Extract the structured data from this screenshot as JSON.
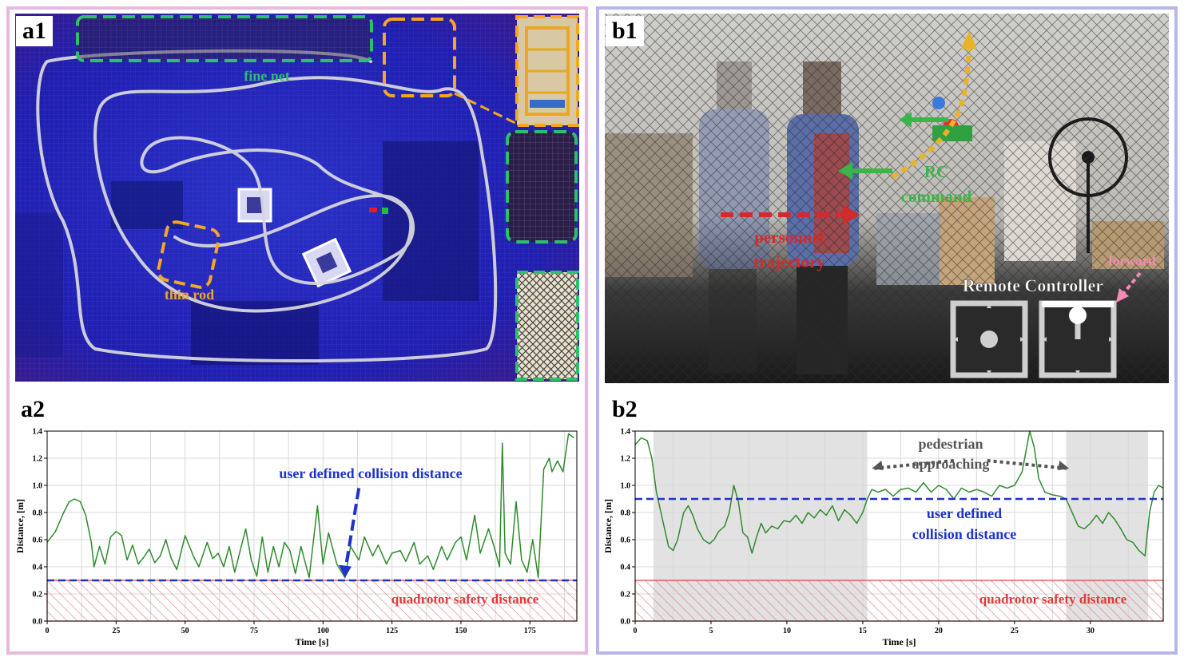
{
  "colors": {
    "frame_a": "#e7b9da",
    "frame_b": "#b6b6ec",
    "series": "#2e8b2e",
    "collision_line": "#1f33c8",
    "safety": "#e03a3a",
    "net_green": "#2fbf6a",
    "rod_orange": "#f5a623",
    "rc_green": "#3ab54a",
    "personnel_red": "#d42a2a",
    "forward_pink": "#f28bb5",
    "shade_gray": "#e2e2e2"
  },
  "panel_a1": {
    "label": "a1",
    "fine_net_label": "fine net",
    "thin_rod_label": "thin rod"
  },
  "panel_b1": {
    "label": "b1",
    "rc_label_line1": "RC",
    "rc_label_line2": "command",
    "personnel_line1": "personnel",
    "personnel_line2": "trajectory",
    "remote_controller_label": "Remote Controller",
    "forward_label": "forward"
  },
  "chart_data": [
    {
      "id": "a2",
      "type": "line",
      "label": "a2",
      "xlabel": "Time [s]",
      "ylabel": "Distance, [m]",
      "xlim": [
        0,
        192
      ],
      "ylim": [
        0,
        1.4
      ],
      "xticks": [
        0,
        25,
        50,
        75,
        100,
        125,
        150,
        175
      ],
      "yticks": [
        0.0,
        0.2,
        0.4,
        0.6,
        0.8,
        1.0,
        1.2,
        1.4
      ],
      "grid": true,
      "collision_distance": 0.3,
      "collision_label": "user defined collision distance",
      "safety_distance": 0.3,
      "safety_label": "quadrotor safety distance",
      "x": [
        0,
        3,
        6,
        8,
        10,
        12,
        14,
        16,
        17,
        19,
        21,
        23,
        25,
        27,
        29,
        31,
        33,
        35,
        37,
        39,
        41,
        43,
        45,
        47,
        50,
        53,
        55,
        58,
        60,
        62,
        64,
        66,
        68,
        70,
        72,
        74,
        76,
        78,
        80,
        82,
        84,
        86,
        88,
        90,
        92,
        95,
        98,
        100,
        102,
        105,
        108,
        110,
        113,
        115,
        118,
        120,
        123,
        125,
        128,
        130,
        133,
        135,
        138,
        140,
        143,
        145,
        148,
        150,
        152,
        155,
        157,
        160,
        162,
        164,
        165,
        166,
        168,
        170,
        172,
        174,
        176,
        178,
        180,
        182,
        183,
        185,
        187,
        189,
        191
      ],
      "y": [
        0.58,
        0.66,
        0.8,
        0.88,
        0.9,
        0.88,
        0.78,
        0.58,
        0.4,
        0.55,
        0.42,
        0.62,
        0.66,
        0.63,
        0.45,
        0.56,
        0.42,
        0.47,
        0.53,
        0.43,
        0.48,
        0.6,
        0.46,
        0.38,
        0.63,
        0.48,
        0.4,
        0.58,
        0.46,
        0.5,
        0.4,
        0.55,
        0.36,
        0.52,
        0.68,
        0.45,
        0.33,
        0.62,
        0.36,
        0.55,
        0.4,
        0.58,
        0.52,
        0.35,
        0.55,
        0.32,
        0.85,
        0.42,
        0.65,
        0.42,
        0.32,
        0.55,
        0.45,
        0.62,
        0.48,
        0.56,
        0.42,
        0.5,
        0.52,
        0.44,
        0.58,
        0.42,
        0.48,
        0.38,
        0.55,
        0.45,
        0.58,
        0.62,
        0.45,
        0.78,
        0.5,
        0.68,
        0.55,
        0.4,
        1.31,
        0.5,
        0.42,
        0.88,
        0.45,
        0.36,
        0.6,
        0.32,
        1.12,
        1.2,
        1.1,
        1.18,
        1.1,
        1.38,
        1.35
      ],
      "annotation_arrow": {
        "x0": 113,
        "y0": 0.98,
        "x1": 108,
        "y1": 0.32
      }
    },
    {
      "id": "b2",
      "type": "line",
      "label": "b2",
      "xlabel": "Time [s]",
      "ylabel": "Distance, [m]",
      "xlim": [
        0,
        34.8
      ],
      "ylim": [
        0,
        1.4
      ],
      "xticks": [
        0,
        5,
        10,
        15,
        20,
        25,
        30
      ],
      "yticks": [
        0.0,
        0.2,
        0.4,
        0.6,
        0.8,
        1.0,
        1.2,
        1.4
      ],
      "grid": true,
      "collision_distance": 0.9,
      "collision_label_line1": "user defined",
      "collision_label_line2": "collision distance",
      "safety_distance": 0.3,
      "safety_label": "quadrotor safety distance",
      "annotation_line1": "pedestrian",
      "annotation_line2": "approaching",
      "shaded_regions": [
        [
          1.2,
          15.3
        ],
        [
          28.4,
          33.8
        ]
      ],
      "x": [
        0,
        0.4,
        0.8,
        1.1,
        1.4,
        1.8,
        2.2,
        2.5,
        2.8,
        3.2,
        3.5,
        3.8,
        4.1,
        4.5,
        4.9,
        5.2,
        5.5,
        5.9,
        6.2,
        6.5,
        6.8,
        7.1,
        7.4,
        7.7,
        8.0,
        8.3,
        8.6,
        9.0,
        9.4,
        9.8,
        10.2,
        10.6,
        11.0,
        11.4,
        11.8,
        12.2,
        12.6,
        13.0,
        13.4,
        13.8,
        14.2,
        14.6,
        15.0,
        15.3,
        15.6,
        16.0,
        16.5,
        17.0,
        17.5,
        18.0,
        18.5,
        19.0,
        19.5,
        20.0,
        20.5,
        21.0,
        21.5,
        22.0,
        22.5,
        23.0,
        23.5,
        24.0,
        24.5,
        25.0,
        25.5,
        26.0,
        26.3,
        26.6,
        27.0,
        27.5,
        28.0,
        28.4,
        28.8,
        29.2,
        29.6,
        30.0,
        30.4,
        30.8,
        31.2,
        31.6,
        32.0,
        32.4,
        32.8,
        33.2,
        33.6,
        33.9,
        34.2,
        34.5,
        34.8
      ],
      "y": [
        1.3,
        1.35,
        1.33,
        1.2,
        0.95,
        0.75,
        0.55,
        0.52,
        0.6,
        0.8,
        0.85,
        0.78,
        0.68,
        0.6,
        0.57,
        0.6,
        0.66,
        0.7,
        0.8,
        1.0,
        0.88,
        0.65,
        0.62,
        0.5,
        0.62,
        0.72,
        0.65,
        0.7,
        0.68,
        0.74,
        0.73,
        0.78,
        0.72,
        0.8,
        0.76,
        0.82,
        0.78,
        0.85,
        0.74,
        0.82,
        0.78,
        0.72,
        0.8,
        0.9,
        0.97,
        0.95,
        0.97,
        0.92,
        0.97,
        0.98,
        0.95,
        1.02,
        0.95,
        1.0,
        0.97,
        0.9,
        0.98,
        0.95,
        0.97,
        0.95,
        0.92,
        1.0,
        0.98,
        1.0,
        1.1,
        1.4,
        1.28,
        1.05,
        0.95,
        0.93,
        0.92,
        0.9,
        0.8,
        0.7,
        0.68,
        0.72,
        0.78,
        0.72,
        0.8,
        0.75,
        0.68,
        0.6,
        0.58,
        0.52,
        0.48,
        0.8,
        0.95,
        1.0,
        0.98
      ],
      "arrow_left": {
        "x0": 21.0,
        "y0": 1.2,
        "x1": 15.6,
        "y1": 1.2
      },
      "arrow_right": {
        "x0": 23.2,
        "y0": 1.2,
        "x1": 28.6,
        "y1": 1.2
      }
    }
  ]
}
